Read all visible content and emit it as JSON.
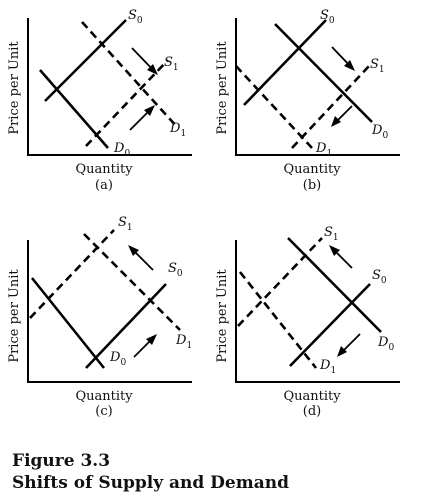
{
  "caption": {
    "number": "Figure 3.3",
    "title": "Shifts of Supply and Demand"
  },
  "panels": [
    {
      "sub": "(a)",
      "xlabel": "Quantity",
      "ylabel": "Price per Unit",
      "curves": {
        "S0": "S0",
        "S1": "S1",
        "D0": "D0",
        "D1": "D1"
      }
    },
    {
      "sub": "(b)",
      "xlabel": "Quantity",
      "ylabel": "Price per Unit",
      "curves": {
        "S0": "S0",
        "S1": "S1",
        "D0": "D0",
        "D1": "D1"
      }
    },
    {
      "sub": "(c)",
      "xlabel": "Quantity",
      "ylabel": "Price per Unit",
      "curves": {
        "S0": "S0",
        "S1": "S1",
        "D0": "D0",
        "D1": "D1"
      }
    },
    {
      "sub": "(d)",
      "xlabel": "Quantity",
      "ylabel": "Price per Unit",
      "curves": {
        "S0": "S0",
        "S1": "S1",
        "D0": "D0",
        "D1": "D1"
      }
    }
  ]
}
